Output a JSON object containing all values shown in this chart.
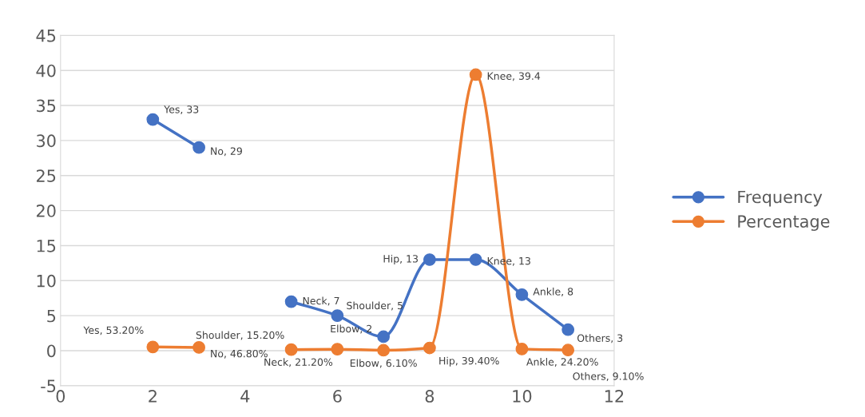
{
  "chart_data": {
    "type": "line",
    "x": [
      2,
      3,
      4,
      5,
      6,
      7,
      8,
      9,
      10,
      11
    ],
    "series": [
      {
        "name": "Frequency",
        "color": "#4472c4",
        "values": [
          33,
          29,
          null,
          7,
          5,
          2,
          13,
          13,
          8,
          3
        ],
        "value_labels": [
          "Yes, 33",
          "No, 29",
          null,
          "Neck, 7",
          "Shoulder, 5",
          "Elbow, 2",
          "Hip, 13",
          "Knee, 13",
          "Ankle, 8",
          "Others, 3"
        ]
      },
      {
        "name": "Percentage",
        "color": "#ed7d31",
        "values": [
          0.532,
          0.468,
          null,
          0.152,
          0.212,
          0.061,
          0.394,
          39.4,
          0.242,
          0.091
        ],
        "value_labels": [
          "Yes, 53.20%",
          "No, 46.80%",
          null,
          "Shoulder, 15.20%",
          "Neck, 21.20%",
          "Elbow, 6.10%",
          "Hip, 39.40%",
          "Knee, 39.4",
          "Ankle, 24.20%",
          "Others, 9.10%"
        ]
      }
    ],
    "xlim": [
      0,
      12
    ],
    "xticks": [
      0,
      2,
      4,
      6,
      8,
      10,
      12
    ],
    "ylim": [
      -5,
      45
    ],
    "yticks": [
      -5,
      0,
      5,
      10,
      15,
      20,
      25,
      30,
      35,
      40,
      45
    ],
    "grid": "y",
    "legend": "right",
    "marker": "circle",
    "line_style": "solid"
  }
}
